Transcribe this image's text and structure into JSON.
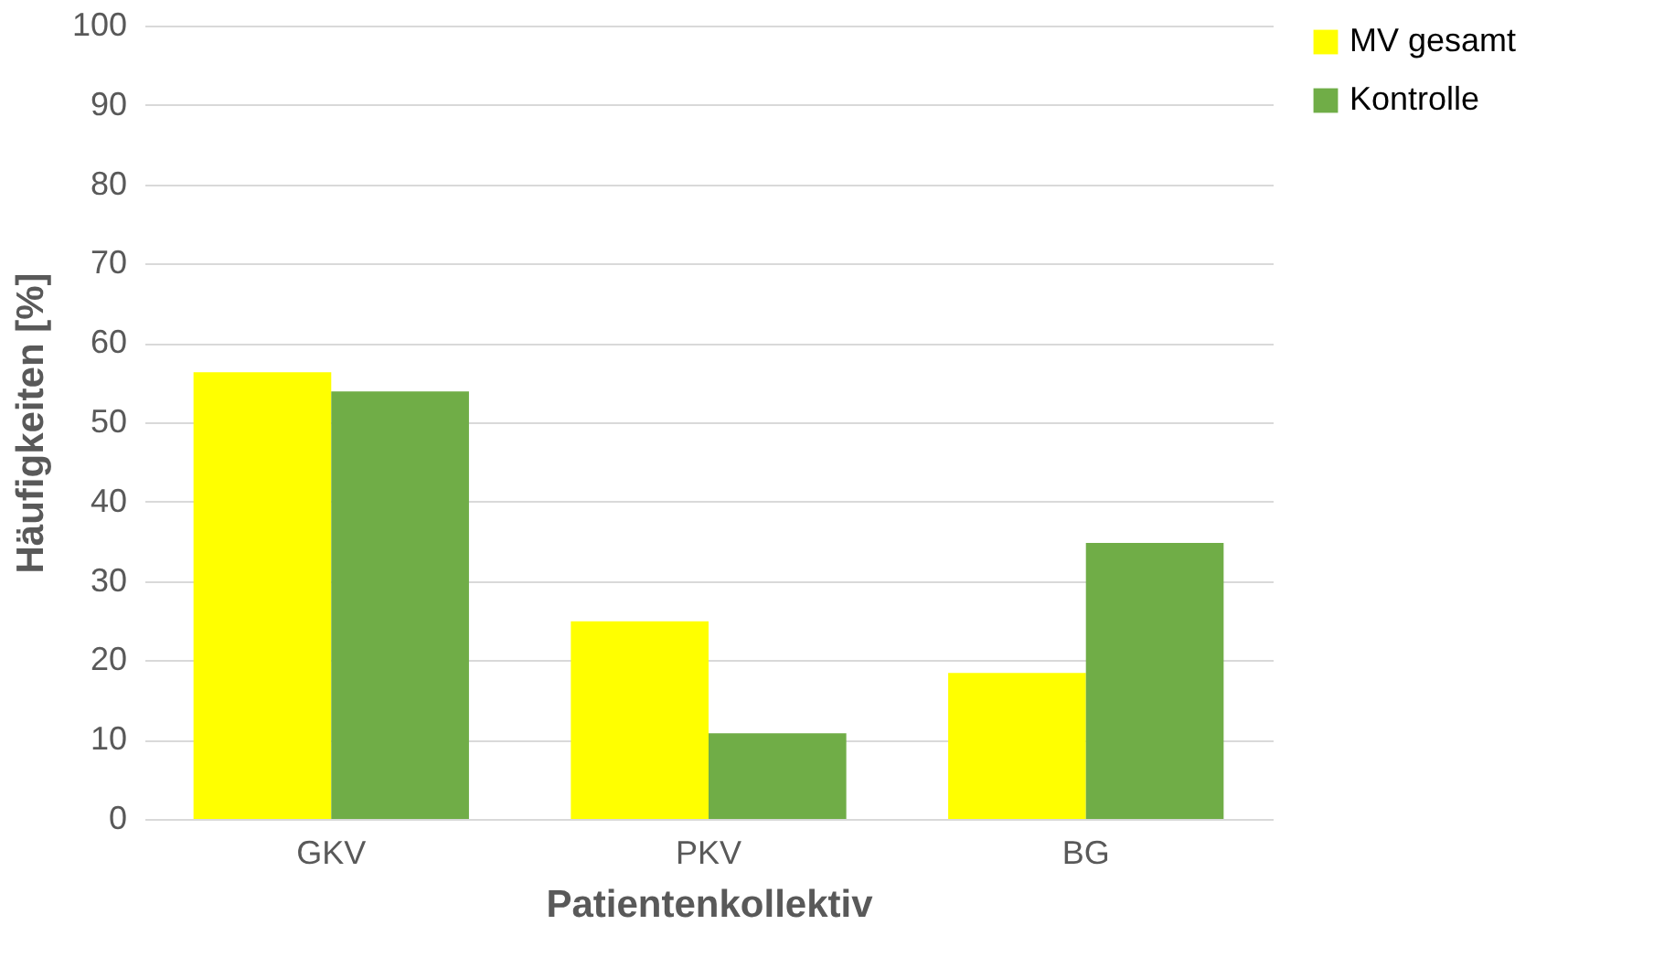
{
  "chart_data": {
    "type": "bar",
    "xlabel": "Patientenkollektiv",
    "ylabel": "Häufigkeiten [%]",
    "categories": [
      "GKV",
      "PKV",
      "BG"
    ],
    "series": [
      {
        "name": "MV gesamt",
        "color": "#ffff00",
        "values": [
          56.3,
          24.9,
          18.4
        ]
      },
      {
        "name": "Kontrolle",
        "color": "#70ad47",
        "values": [
          53.9,
          10.8,
          34.8
        ]
      }
    ],
    "ylim": [
      0,
      100
    ],
    "yticks": [
      0,
      10,
      20,
      30,
      40,
      50,
      60,
      70,
      80,
      90,
      100
    ],
    "grid": "y",
    "legend": "right"
  }
}
